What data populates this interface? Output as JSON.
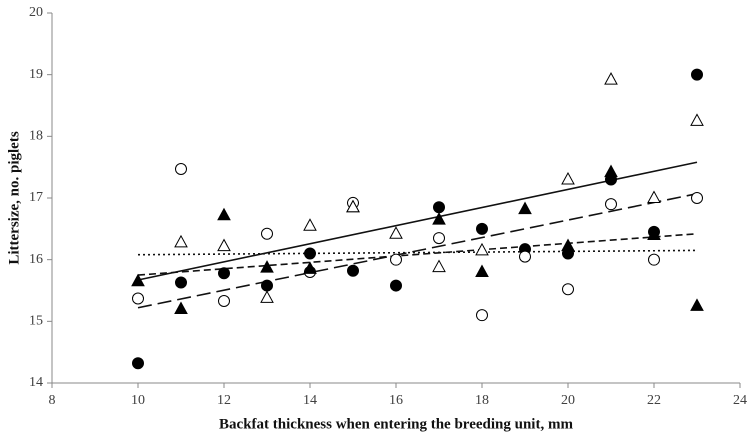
{
  "chart_data": {
    "type": "scatter",
    "x_label": "Backfat thickness when entering the breeding unit, mm",
    "y_label": "Littersize, no. piglets",
    "x": [
      10,
      11,
      12,
      13,
      14,
      15,
      16,
      17,
      18,
      19,
      20,
      21,
      22,
      23
    ],
    "series": [
      {
        "marker": "circle",
        "filled": true,
        "color": "#000000",
        "values": [
          14.32,
          15.63,
          15.78,
          15.58,
          16.1,
          15.82,
          15.58,
          16.85,
          16.5,
          16.17,
          16.1,
          17.3,
          16.45,
          19.0
        ]
      },
      {
        "marker": "circle",
        "filled": false,
        "color": "#000000",
        "values": [
          15.37,
          17.47,
          15.33,
          16.42,
          15.8,
          16.92,
          16.0,
          16.35,
          15.1,
          16.05,
          15.52,
          16.9,
          16.0,
          17.0
        ]
      },
      {
        "marker": "triangle",
        "filled": true,
        "color": "#000000",
        "values": [
          15.65,
          15.2,
          16.72,
          15.87,
          15.85,
          16.85,
          null,
          16.65,
          15.8,
          16.82,
          16.22,
          17.42,
          16.4,
          15.25
        ]
      },
      {
        "marker": "triangle",
        "filled": false,
        "color": "#000000",
        "values": [
          null,
          16.28,
          16.22,
          15.38,
          16.55,
          16.85,
          16.42,
          15.88,
          16.15,
          null,
          17.3,
          18.92,
          17.0,
          18.25
        ]
      }
    ],
    "trend_lines": [
      {
        "dash": "solid",
        "x": [
          10,
          23
        ],
        "values": [
          15.67,
          17.58
        ]
      },
      {
        "dash": "long",
        "x": [
          10,
          23
        ],
        "values": [
          15.22,
          17.07
        ]
      },
      {
        "dash": "short",
        "x": [
          10,
          23
        ],
        "values": [
          15.75,
          16.42
        ]
      },
      {
        "dash": "dotted",
        "x": [
          10,
          23
        ],
        "values": [
          16.08,
          16.15
        ]
      }
    ],
    "xlim": [
      8,
      24
    ],
    "xticks": [
      8,
      10,
      12,
      14,
      16,
      18,
      20,
      22,
      24
    ],
    "ylim": [
      14,
      20
    ],
    "yticks": [
      14,
      15,
      16,
      17,
      18,
      19,
      20
    ],
    "grid": false
  }
}
